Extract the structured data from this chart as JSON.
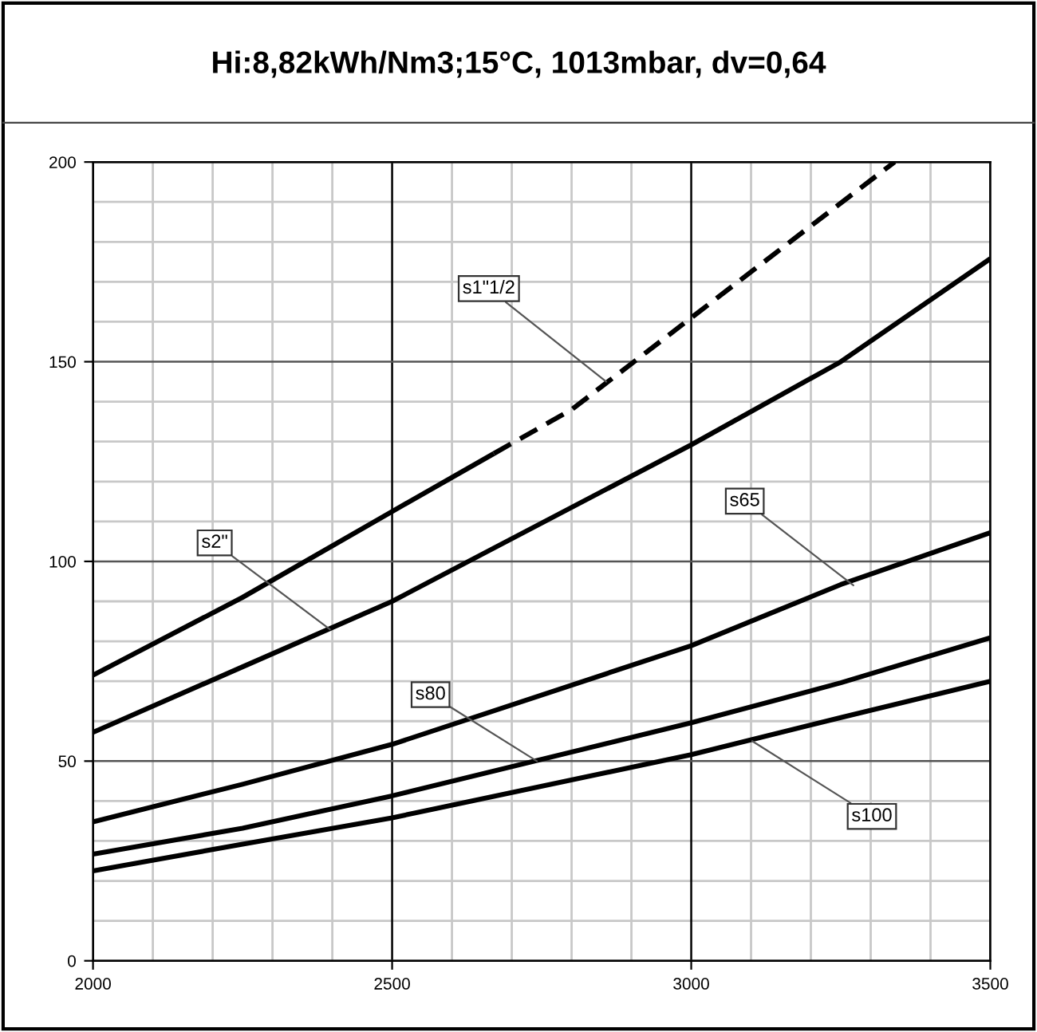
{
  "chart_data": {
    "type": "line",
    "title": "Hi:8,82kWh/Nm3;15°C, 1013mbar, dv=0,64",
    "series": [
      {
        "color": "#000000",
        "line_style": "solid",
        "x": [
          2000,
          2250,
          2500,
          2670
        ],
        "values": [
          71.5,
          91,
          112.5,
          127
        ]
      },
      {
        "color": "#000000",
        "line_style": "dashed",
        "x": [
          2670,
          2800,
          3000,
          3200,
          3340
        ],
        "values": [
          127,
          138,
          161,
          184,
          200
        ]
      },
      {
        "color": "#000000",
        "line_style": "solid",
        "x": [
          2000,
          2250,
          2500,
          3000,
          3250,
          3500
        ],
        "values": [
          57.2,
          73.6,
          90,
          129.2,
          150,
          175.8
        ]
      },
      {
        "color": "#000000",
        "line_style": "solid",
        "x": [
          2000,
          2250,
          2500,
          3000,
          3250,
          3500
        ],
        "values": [
          34.8,
          44.2,
          54.2,
          78.9,
          94.2,
          107.2
        ]
      },
      {
        "color": "#000000",
        "line_style": "solid",
        "x": [
          2000,
          2250,
          2500,
          3000,
          3250,
          3500
        ],
        "values": [
          26.7,
          33.2,
          41.3,
          59.6,
          69.6,
          80.9
        ]
      },
      {
        "color": "#000000",
        "line_style": "solid",
        "x": [
          2000,
          2250,
          2500,
          3000,
          3250,
          3500
        ],
        "values": [
          22.5,
          29.2,
          35.8,
          51.6,
          60.9,
          70
        ]
      }
    ],
    "xlim": [
      2000,
      3500
    ],
    "ylim": [
      0,
      200
    ],
    "xticks": [
      2000,
      {
        "value": 2100,
        "label": null
      },
      {
        "value": 2200,
        "label": null
      },
      {
        "value": 2300,
        "label": null
      },
      {
        "value": 2400,
        "label": null
      },
      2500,
      {
        "value": 2600,
        "label": null
      },
      {
        "value": 2700,
        "label": null
      },
      {
        "value": 2800,
        "label": null
      },
      {
        "value": 2900,
        "label": null
      },
      3000,
      {
        "value": 3100,
        "label": null
      },
      {
        "value": 3200,
        "label": null
      },
      {
        "value": 3300,
        "label": null
      },
      {
        "value": 3400,
        "label": null
      },
      3500
    ],
    "yticks": [
      0,
      {
        "value": 10,
        "label": null
      },
      {
        "value": 20,
        "label": null
      },
      {
        "value": 30,
        "label": null
      },
      {
        "value": 40,
        "label": null
      },
      50,
      {
        "value": 60,
        "label": null
      },
      {
        "value": 70,
        "label": null
      },
      {
        "value": 80,
        "label": null
      },
      {
        "value": 90,
        "label": null
      },
      100,
      {
        "value": 110,
        "label": null
      },
      {
        "value": 120,
        "label": null
      },
      {
        "value": 130,
        "label": null
      },
      {
        "value": 140,
        "label": null
      },
      150,
      {
        "value": 160,
        "label": null
      },
      {
        "value": 170,
        "label": null
      },
      {
        "value": 180,
        "label": null
      },
      {
        "value": 190,
        "label": null
      },
      200
    ],
    "grid": true,
    "marker": "none",
    "annotations": [
      {
        "text": "s1\"1/2",
        "x": 2858,
        "y": 145
      },
      {
        "text": "s2\"",
        "x": 2396,
        "y": 83
      },
      {
        "text": "s65",
        "x": 3271,
        "y": 94
      },
      {
        "text": "s80",
        "x": 2742,
        "y": 50
      },
      {
        "text": "s100",
        "x": 3102,
        "y": 55
      }
    ]
  }
}
